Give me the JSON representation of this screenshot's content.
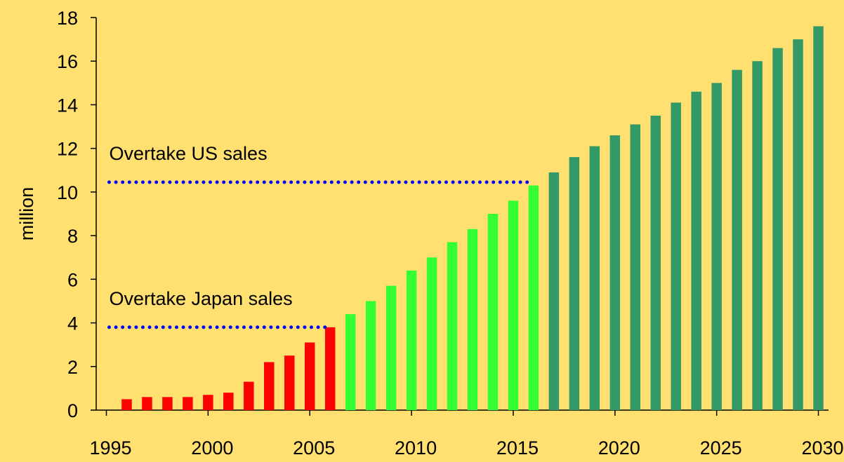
{
  "chart_data": {
    "type": "bar",
    "y_label": "million",
    "x": [
      1995,
      1996,
      1997,
      1998,
      1999,
      2000,
      2001,
      2002,
      2003,
      2004,
      2005,
      2006,
      2007,
      2008,
      2009,
      2010,
      2011,
      2012,
      2013,
      2014,
      2015,
      2016,
      2017,
      2018,
      2019,
      2020,
      2021,
      2022,
      2023,
      2024,
      2025,
      2026,
      2027,
      2028,
      2029,
      2030
    ],
    "series": [
      {
        "color": "#ff0000",
        "values": [
          null,
          0.5,
          0.6,
          0.6,
          0.6,
          0.7,
          0.8,
          1.3,
          2.2,
          2.5,
          3.1,
          3.8,
          null,
          null,
          null,
          null,
          null,
          null,
          null,
          null,
          null,
          null,
          null,
          null,
          null,
          null,
          null,
          null,
          null,
          null,
          null,
          null,
          null,
          null,
          null,
          null
        ]
      },
      {
        "color": "#33ff33",
        "values": [
          null,
          null,
          null,
          null,
          null,
          null,
          null,
          null,
          null,
          null,
          null,
          null,
          4.4,
          5.0,
          5.7,
          6.4,
          7.0,
          7.7,
          8.3,
          9.0,
          9.6,
          10.3,
          null,
          null,
          null,
          null,
          null,
          null,
          null,
          null,
          null,
          null,
          null,
          null,
          null,
          null
        ]
      },
      {
        "color": "#339966",
        "values": [
          null,
          null,
          null,
          null,
          null,
          null,
          null,
          null,
          null,
          null,
          null,
          null,
          null,
          null,
          null,
          null,
          null,
          null,
          null,
          null,
          null,
          null,
          10.9,
          11.6,
          12.1,
          12.6,
          13.1,
          13.5,
          14.1,
          14.6,
          15.0,
          15.6,
          16.0,
          16.6,
          17.0,
          17.6
        ]
      }
    ],
    "xlim": [
      1994.5,
      2030.5
    ],
    "xticks": [
      1995,
      2000,
      2005,
      2010,
      2015,
      2020,
      2025,
      2030
    ],
    "ylim": [
      0,
      18
    ],
    "yticks": [
      0,
      2,
      4,
      6,
      8,
      10,
      12,
      14,
      16,
      18
    ],
    "annotations": [
      {
        "text": "Overtake US sales",
        "value": 10.45,
        "x": [
          1995,
          2016
        ],
        "color": "#0000ff"
      },
      {
        "text": "Overtake Japan sales",
        "value": 3.8,
        "x": [
          1995,
          2006
        ],
        "color": "#0000ff"
      }
    ]
  }
}
